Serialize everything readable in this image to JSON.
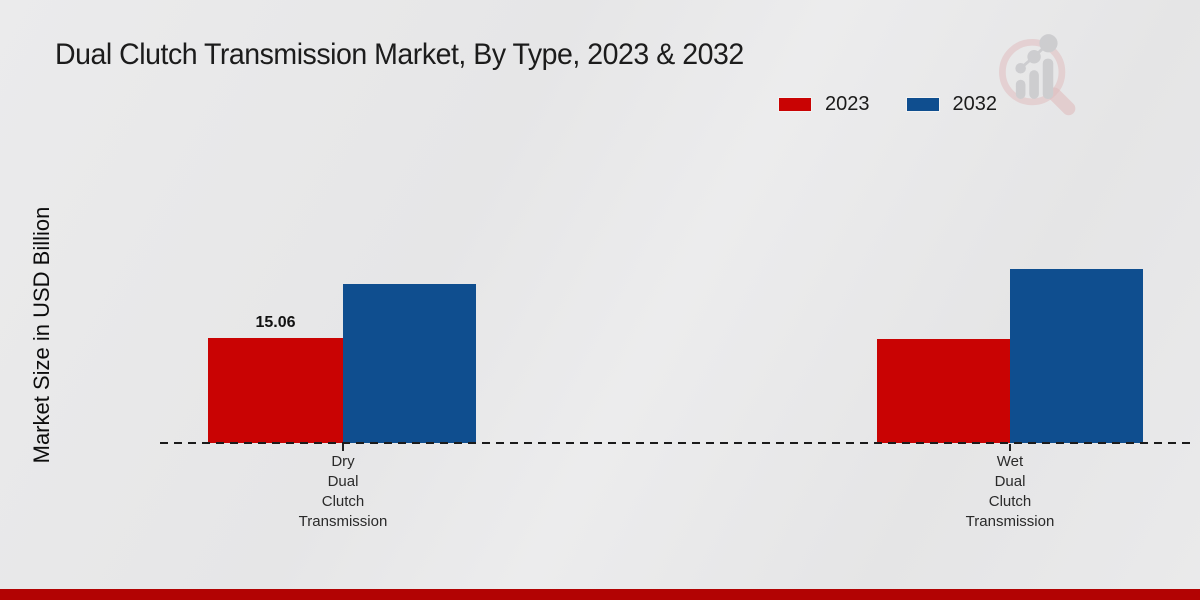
{
  "page": {
    "background_color": "#e8e8e9",
    "footer_bar_color": "#b20303"
  },
  "header": {
    "title": "Dual Clutch Transmission Market, By Type, 2023 & 2032"
  },
  "logo": {
    "name": "magnifier-bar-chart-logo",
    "ring_color": "#dfb3b4",
    "bars_color": "#c7c7ca"
  },
  "legend": {
    "position": "top-right",
    "items": [
      {
        "label": "2023",
        "color": "#c90303"
      },
      {
        "label": "2032",
        "color": "#0f4e8f"
      }
    ]
  },
  "chart_data": {
    "type": "bar",
    "title": "Dual Clutch Transmission Market, By Type, 2023 & 2032",
    "xlabel": "",
    "ylabel": "Market Size in USD Billion",
    "categories": [
      "Dry Dual Clutch Transmission",
      "Wet Dual Clutch Transmission"
    ],
    "category_label_lines": [
      [
        "Dry",
        "Dual",
        "Clutch",
        "Transmission"
      ],
      [
        "Wet",
        "Dual",
        "Clutch",
        "Transmission"
      ]
    ],
    "series": [
      {
        "name": "2023",
        "color": "#c90303",
        "values": [
          15.06,
          14.9
        ]
      },
      {
        "name": "2032",
        "color": "#0f4e8f",
        "values": [
          22.8,
          24.95
        ]
      }
    ],
    "value_labels": [
      {
        "series_index": 0,
        "category_index": 0,
        "text": "15.06"
      }
    ],
    "notes": "Only the Dry 2023 bar carries a printed value label; other values estimated from bar heights.",
    "baseline_style": "dashed",
    "grid": false,
    "y_axis_tick_labels_visible": false,
    "legend_position": "top-right",
    "ylim": [
      0,
      27
    ]
  }
}
